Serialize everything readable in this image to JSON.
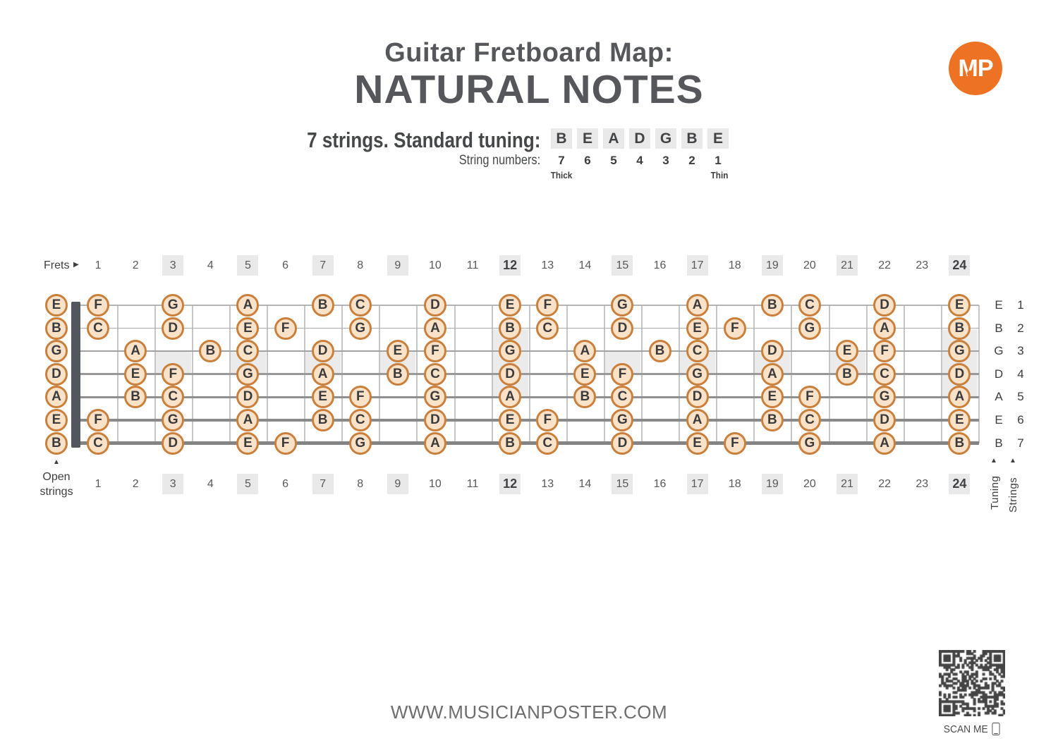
{
  "header": {
    "title_line1": "Guitar Fretboard Map:",
    "title_line2": "NATURAL NOTES",
    "subtitle": "7 strings. Standard tuning:",
    "tuning_letters": [
      "B",
      "E",
      "A",
      "D",
      "G",
      "B",
      "E"
    ],
    "string_numbers_label": "String numbers:",
    "string_numbers": [
      "7",
      "6",
      "5",
      "4",
      "3",
      "2",
      "1"
    ],
    "thick_label": "Thick",
    "thin_label": "Thin",
    "logo_text": "MP"
  },
  "fretboard": {
    "frets_label": "Frets",
    "open_strings_label_line1": "Open",
    "open_strings_label_line2": "strings",
    "tuning_axis_label": "Tuning",
    "strings_axis_label": "Strings",
    "fret_numbers": [
      "1",
      "2",
      "3",
      "4",
      "5",
      "6",
      "7",
      "8",
      "9",
      "10",
      "11",
      "12",
      "13",
      "14",
      "15",
      "16",
      "17",
      "18",
      "19",
      "20",
      "21",
      "22",
      "23",
      "24"
    ],
    "highlighted_frets": [
      3,
      5,
      7,
      9,
      12,
      15,
      17,
      19,
      21,
      24
    ],
    "bold_frets": [
      12,
      24
    ],
    "single_inlay_frets": [
      3,
      5,
      7,
      9,
      15,
      17,
      19,
      21
    ],
    "double_inlay_frets": [
      12,
      24
    ],
    "strings": [
      {
        "string_number": 1,
        "tuning": "E",
        "open_note": "E",
        "notes": [
          [
            1,
            "F"
          ],
          [
            3,
            "G"
          ],
          [
            5,
            "A"
          ],
          [
            7,
            "B"
          ],
          [
            8,
            "C"
          ],
          [
            10,
            "D"
          ],
          [
            12,
            "E"
          ],
          [
            13,
            "F"
          ],
          [
            15,
            "G"
          ],
          [
            17,
            "A"
          ],
          [
            19,
            "B"
          ],
          [
            20,
            "C"
          ],
          [
            22,
            "D"
          ],
          [
            24,
            "E"
          ]
        ]
      },
      {
        "string_number": 2,
        "tuning": "B",
        "open_note": "B",
        "notes": [
          [
            1,
            "C"
          ],
          [
            3,
            "D"
          ],
          [
            5,
            "E"
          ],
          [
            6,
            "F"
          ],
          [
            8,
            "G"
          ],
          [
            10,
            "A"
          ],
          [
            12,
            "B"
          ],
          [
            13,
            "C"
          ],
          [
            15,
            "D"
          ],
          [
            17,
            "E"
          ],
          [
            18,
            "F"
          ],
          [
            20,
            "G"
          ],
          [
            22,
            "A"
          ],
          [
            24,
            "B"
          ]
        ]
      },
      {
        "string_number": 3,
        "tuning": "G",
        "open_note": "G",
        "notes": [
          [
            2,
            "A"
          ],
          [
            4,
            "B"
          ],
          [
            5,
            "C"
          ],
          [
            7,
            "D"
          ],
          [
            9,
            "E"
          ],
          [
            10,
            "F"
          ],
          [
            12,
            "G"
          ],
          [
            14,
            "A"
          ],
          [
            16,
            "B"
          ],
          [
            17,
            "C"
          ],
          [
            19,
            "D"
          ],
          [
            21,
            "E"
          ],
          [
            22,
            "F"
          ],
          [
            24,
            "G"
          ]
        ]
      },
      {
        "string_number": 4,
        "tuning": "D",
        "open_note": "D",
        "notes": [
          [
            2,
            "E"
          ],
          [
            3,
            "F"
          ],
          [
            5,
            "G"
          ],
          [
            7,
            "A"
          ],
          [
            9,
            "B"
          ],
          [
            10,
            "C"
          ],
          [
            12,
            "D"
          ],
          [
            14,
            "E"
          ],
          [
            15,
            "F"
          ],
          [
            17,
            "G"
          ],
          [
            19,
            "A"
          ],
          [
            21,
            "B"
          ],
          [
            22,
            "C"
          ],
          [
            24,
            "D"
          ]
        ]
      },
      {
        "string_number": 5,
        "tuning": "A",
        "open_note": "A",
        "notes": [
          [
            2,
            "B"
          ],
          [
            3,
            "C"
          ],
          [
            5,
            "D"
          ],
          [
            7,
            "E"
          ],
          [
            8,
            "F"
          ],
          [
            10,
            "G"
          ],
          [
            12,
            "A"
          ],
          [
            14,
            "B"
          ],
          [
            15,
            "C"
          ],
          [
            17,
            "D"
          ],
          [
            19,
            "E"
          ],
          [
            20,
            "F"
          ],
          [
            22,
            "G"
          ],
          [
            24,
            "A"
          ]
        ]
      },
      {
        "string_number": 6,
        "tuning": "E",
        "open_note": "E",
        "notes": [
          [
            1,
            "F"
          ],
          [
            3,
            "G"
          ],
          [
            5,
            "A"
          ],
          [
            7,
            "B"
          ],
          [
            8,
            "C"
          ],
          [
            10,
            "D"
          ],
          [
            12,
            "E"
          ],
          [
            13,
            "F"
          ],
          [
            15,
            "G"
          ],
          [
            17,
            "A"
          ],
          [
            19,
            "B"
          ],
          [
            20,
            "C"
          ],
          [
            22,
            "D"
          ],
          [
            24,
            "E"
          ]
        ]
      },
      {
        "string_number": 7,
        "tuning": "B",
        "open_note": "B",
        "notes": [
          [
            1,
            "C"
          ],
          [
            3,
            "D"
          ],
          [
            5,
            "E"
          ],
          [
            6,
            "F"
          ],
          [
            8,
            "G"
          ],
          [
            10,
            "A"
          ],
          [
            12,
            "B"
          ],
          [
            13,
            "C"
          ],
          [
            15,
            "D"
          ],
          [
            17,
            "E"
          ],
          [
            18,
            "F"
          ],
          [
            20,
            "G"
          ],
          [
            22,
            "A"
          ],
          [
            24,
            "B"
          ]
        ]
      }
    ]
  },
  "footer": {
    "website": "WWW.MUSICIANPOSTER.COM",
    "scan_label": "SCAN ME"
  },
  "colors": {
    "accent_orange": "#ED7224",
    "note_fill": "#FAE2C8",
    "note_border": "#C9803D",
    "highlight_gray": "#E9E9E9",
    "title_gray": "#56575B",
    "qr_dark": "#454545"
  }
}
